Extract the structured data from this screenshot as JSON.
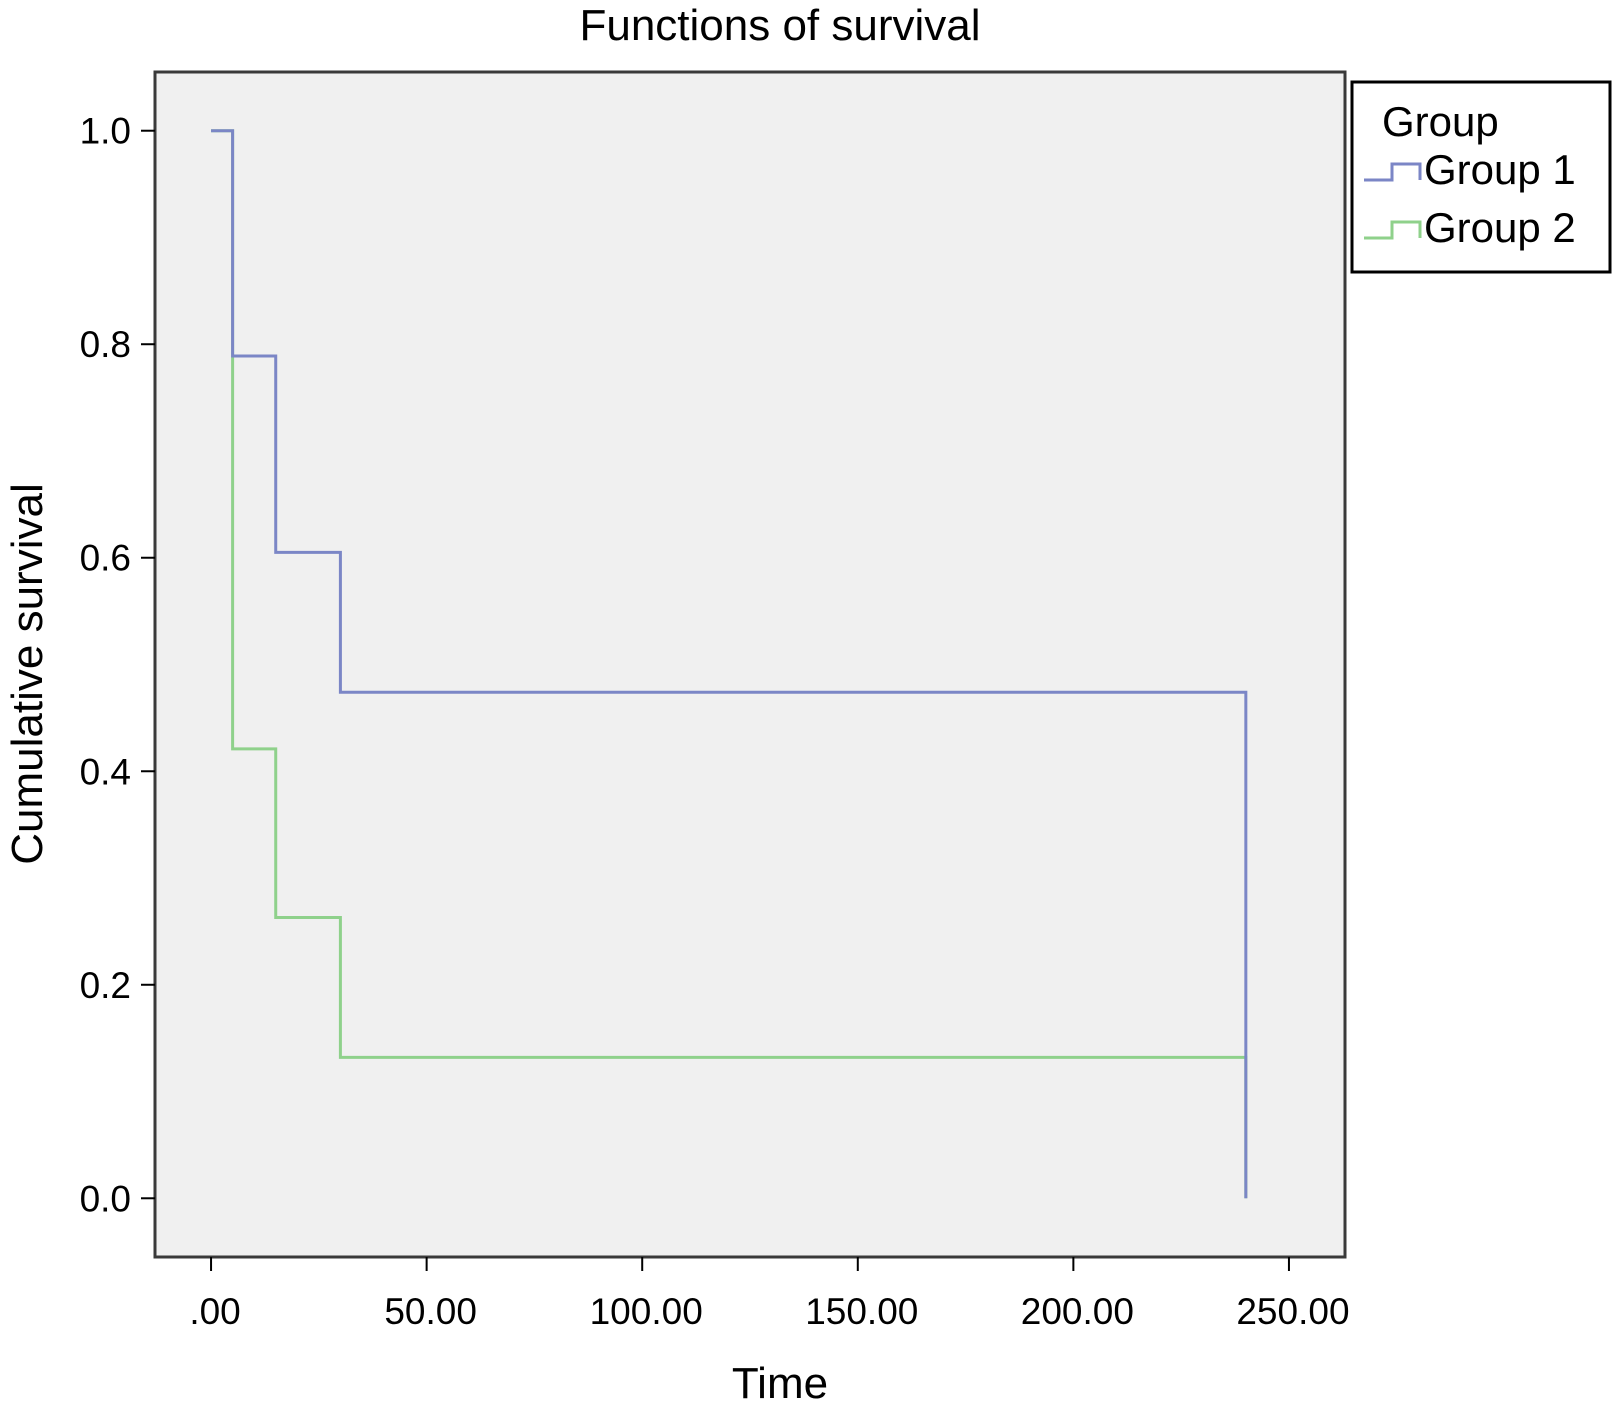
{
  "chart_data": {
    "type": "line",
    "title": "Functions of survival",
    "xlabel": "Time",
    "ylabel": "Cumulative survival",
    "xlim": [
      -13,
      263
    ],
    "ylim": [
      -0.055,
      1.055
    ],
    "x_ticks": [
      0,
      50,
      100,
      150,
      200,
      250
    ],
    "x_tick_labels": [
      ".00",
      "50.00",
      "100.00",
      "150.00",
      "200.00",
      "250.00"
    ],
    "y_ticks": [
      0.0,
      0.2,
      0.4,
      0.6,
      0.8,
      1.0
    ],
    "y_tick_labels": [
      "0.0",
      "0.2",
      "0.4",
      "0.6",
      "0.8",
      "1.0"
    ],
    "grid": false,
    "step": true,
    "legend": {
      "title": "Group",
      "placement": "outside-top-right"
    },
    "series": [
      {
        "name": "Group 1",
        "color": "#7b86c6",
        "x": [
          0,
          5,
          15,
          30,
          240,
          240
        ],
        "y": [
          1.0,
          0.789,
          0.605,
          0.474,
          0.474,
          0.0
        ]
      },
      {
        "name": "Group 2",
        "color": "#8fd18b",
        "x": [
          0,
          5,
          15,
          30,
          240,
          240
        ],
        "y": [
          1.0,
          0.421,
          0.263,
          0.132,
          0.132,
          0.0
        ]
      }
    ]
  }
}
